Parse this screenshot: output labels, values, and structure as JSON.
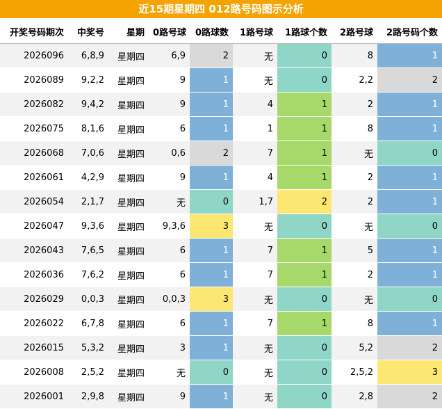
{
  "title": "近15期星期四 012路号码图示分析",
  "headers": [
    "开奖号码期次",
    "中奖号",
    "星期",
    "0路号球",
    "0路球数",
    "1路号球",
    "1路球个数",
    "2路号球",
    "2路号码个数"
  ],
  "rows": [
    {
      "period": "2026096",
      "numbers": "6,8,9",
      "weekday": "星期四",
      "road0": "6,9",
      "road0_count": "2",
      "road1": "无",
      "road1_count": "0",
      "road2": "8",
      "road2_count": "1"
    },
    {
      "period": "2026089",
      "numbers": "9,2,2",
      "weekday": "星期四",
      "road0": "9",
      "road0_count": "1",
      "road1": "无",
      "road1_count": "0",
      "road2": "2,2",
      "road2_count": "2"
    },
    {
      "period": "2026082",
      "numbers": "9,4,2",
      "weekday": "星期四",
      "road0": "9",
      "road0_count": "1",
      "road1": "4",
      "road1_count": "1",
      "road2": "2",
      "road2_count": "1"
    },
    {
      "period": "2026075",
      "numbers": "8,1,6",
      "weekday": "星期四",
      "road0": "6",
      "road0_count": "1",
      "road1": "1",
      "road1_count": "1",
      "road2": "8",
      "road2_count": "1"
    },
    {
      "period": "2026068",
      "numbers": "7,0,6",
      "weekday": "星期四",
      "road0": "0,6",
      "road0_count": "2",
      "road1": "7",
      "road1_count": "1",
      "road2": "无",
      "road2_count": "0"
    },
    {
      "period": "2026061",
      "numbers": "4,2,9",
      "weekday": "星期四",
      "road0": "9",
      "road0_count": "1",
      "road1": "4",
      "road1_count": "1",
      "road2": "2",
      "road2_count": "1"
    },
    {
      "period": "2026054",
      "numbers": "2,1,7",
      "weekday": "星期四",
      "road0": "无",
      "road0_count": "0",
      "road1": "1,7",
      "road1_count": "2",
      "road2": "2",
      "road2_count": "1"
    },
    {
      "period": "2026047",
      "numbers": "9,3,6",
      "weekday": "星期四",
      "road0": "9,3,6",
      "road0_count": "3",
      "road1": "无",
      "road1_count": "0",
      "road2": "无",
      "road2_count": "0"
    },
    {
      "period": "2026043",
      "numbers": "7,6,5",
      "weekday": "星期四",
      "road0": "6",
      "road0_count": "1",
      "road1": "7",
      "road1_count": "1",
      "road2": "5",
      "road2_count": "1"
    },
    {
      "period": "2026036",
      "numbers": "7,6,2",
      "weekday": "星期四",
      "road0": "6",
      "road0_count": "1",
      "road1": "7",
      "road1_count": "1",
      "road2": "2",
      "road2_count": "1"
    },
    {
      "period": "2026029",
      "numbers": "0,0,3",
      "weekday": "星期四",
      "road0": "0,0,3",
      "road0_count": "3",
      "road1": "无",
      "road1_count": "0",
      "road2": "无",
      "road2_count": "0"
    },
    {
      "period": "2026022",
      "numbers": "6,7,8",
      "weekday": "星期四",
      "road0": "6",
      "road0_count": "1",
      "road1": "7",
      "road1_count": "1",
      "road2": "8",
      "road2_count": "1"
    },
    {
      "period": "2026015",
      "numbers": "5,3,2",
      "weekday": "星期四",
      "road0": "3",
      "road0_count": "1",
      "road1": "无",
      "road1_count": "0",
      "road2": "5,2",
      "road2_count": "2"
    },
    {
      "period": "2026008",
      "numbers": "2,5,2",
      "weekday": "星期四",
      "road0": "无",
      "road0_count": "0",
      "road1": "无",
      "road1_count": "0",
      "road2": "2,5,2",
      "road2_count": "3"
    },
    {
      "period": "2026001",
      "numbers": "2,9,8",
      "weekday": "星期四",
      "road0": "9",
      "road0_count": "1",
      "road1": "无",
      "road1_count": "0",
      "road2": "2,8",
      "road2_count": "2"
    }
  ],
  "count_colors": {
    "road0": {
      "0": "#8fd6c7",
      "1": "#7fb1d8",
      "2": "#d9d9d9",
      "3": "#fde773"
    },
    "road1": {
      "0": "#8fd6c7",
      "1": "#a6d86a",
      "2": "#fde773"
    },
    "road2": {
      "0": "#8fd6c7",
      "1": "#7fb1d8",
      "2": "#d9d9d9",
      "3": "#fde773"
    }
  },
  "title_bar_color": "#f5a300"
}
